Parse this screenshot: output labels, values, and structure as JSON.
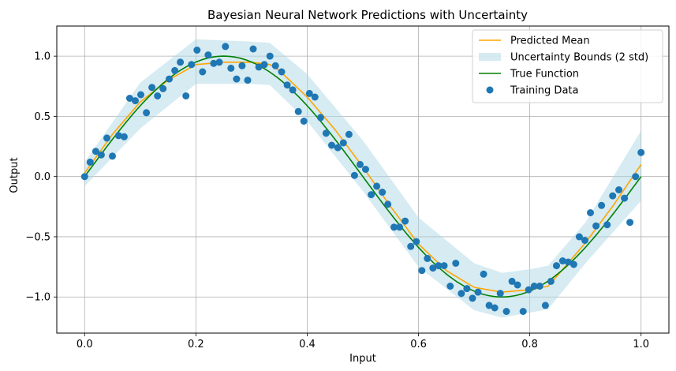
{
  "chart_data": {
    "type": "line",
    "title": "Bayesian Neural Network Predictions with Uncertainty",
    "xlabel": "Input",
    "ylabel": "Output",
    "xlim": [
      -0.05,
      1.05
    ],
    "ylim": [
      -1.3,
      1.25
    ],
    "xticks": [
      "0.0",
      "0.2",
      "0.4",
      "0.6",
      "0.8",
      "1.0"
    ],
    "yticks": [
      "-1.0",
      "-0.5",
      "0.0",
      "0.5",
      "1.0"
    ],
    "grid": true,
    "legend_position": "top-right",
    "colors": {
      "mean": "#ffa500",
      "band": "#add8e6",
      "true": "#008000",
      "points": "#1f77b4"
    },
    "legend": [
      {
        "label": "Predicted Mean",
        "kind": "line",
        "color": "#ffa500"
      },
      {
        "label": "Uncertainty Bounds (2 std)",
        "kind": "patch",
        "color": "#add8e6"
      },
      {
        "label": "True Function",
        "kind": "line",
        "color": "#008000"
      },
      {
        "label": "Training Data",
        "kind": "marker",
        "color": "#1f77b4"
      }
    ],
    "predicted_mean": {
      "x": [
        0.0,
        0.05,
        0.1,
        0.15,
        0.2,
        0.25,
        0.3,
        0.333,
        0.35,
        0.4,
        0.45,
        0.5,
        0.55,
        0.6,
        0.65,
        0.7,
        0.75,
        0.8,
        0.833,
        0.85,
        0.9,
        0.95,
        1.0
      ],
      "y": [
        0.03,
        0.35,
        0.62,
        0.8,
        0.93,
        0.95,
        0.95,
        0.93,
        0.88,
        0.66,
        0.39,
        0.08,
        -0.25,
        -0.56,
        -0.78,
        -0.92,
        -0.96,
        -0.94,
        -0.91,
        -0.82,
        -0.55,
        -0.24,
        0.1
      ]
    },
    "uncertainty_upper": {
      "x": [
        0.0,
        0.1,
        0.2,
        0.3,
        0.333,
        0.4,
        0.5,
        0.6,
        0.7,
        0.75,
        0.8,
        0.833,
        0.9,
        1.0
      ],
      "y": [
        0.12,
        0.78,
        1.14,
        1.12,
        1.11,
        0.85,
        0.3,
        -0.34,
        -0.72,
        -0.8,
        -0.77,
        -0.74,
        -0.38,
        0.38
      ]
    },
    "uncertainty_lower": {
      "x": [
        0.0,
        0.1,
        0.2,
        0.3,
        0.333,
        0.4,
        0.5,
        0.6,
        0.7,
        0.75,
        0.8,
        0.833,
        0.9,
        1.0
      ],
      "y": [
        -0.08,
        0.4,
        0.77,
        0.77,
        0.76,
        0.46,
        -0.12,
        -0.75,
        -1.11,
        -1.17,
        -1.13,
        -1.1,
        -0.72,
        -0.2
      ]
    },
    "training_data": {
      "x": [
        0.0,
        0.01,
        0.02,
        0.03,
        0.04,
        0.05,
        0.061,
        0.071,
        0.081,
        0.091,
        0.101,
        0.111,
        0.121,
        0.131,
        0.141,
        0.152,
        0.162,
        0.172,
        0.182,
        0.192,
        0.202,
        0.212,
        0.222,
        0.232,
        0.242,
        0.253,
        0.263,
        0.273,
        0.283,
        0.293,
        0.303,
        0.313,
        0.323,
        0.333,
        0.343,
        0.354,
        0.364,
        0.374,
        0.384,
        0.394,
        0.404,
        0.414,
        0.424,
        0.434,
        0.444,
        0.455,
        0.465,
        0.475,
        0.485,
        0.495,
        0.505,
        0.515,
        0.525,
        0.535,
        0.545,
        0.556,
        0.566,
        0.576,
        0.586,
        0.596,
        0.606,
        0.616,
        0.626,
        0.636,
        0.646,
        0.657,
        0.667,
        0.677,
        0.687,
        0.697,
        0.707,
        0.717,
        0.727,
        0.737,
        0.747,
        0.758,
        0.768,
        0.778,
        0.788,
        0.798,
        0.808,
        0.818,
        0.828,
        0.838,
        0.848,
        0.859,
        0.869,
        0.879,
        0.889,
        0.899,
        0.909,
        0.919,
        0.929,
        0.939,
        0.949,
        0.96,
        0.97,
        0.98,
        0.99,
        1.0
      ],
      "y": [
        0.0,
        0.12,
        0.21,
        0.18,
        0.32,
        0.17,
        0.34,
        0.33,
        0.65,
        0.63,
        0.68,
        0.53,
        0.74,
        0.67,
        0.73,
        0.81,
        0.88,
        0.95,
        0.67,
        0.93,
        1.05,
        0.87,
        1.01,
        0.94,
        0.95,
        1.08,
        0.9,
        0.81,
        0.92,
        0.8,
        1.06,
        0.91,
        0.93,
        1.0,
        0.92,
        0.87,
        0.76,
        0.72,
        0.54,
        0.46,
        0.69,
        0.66,
        0.49,
        0.36,
        0.26,
        0.24,
        0.28,
        0.35,
        0.01,
        0.1,
        0.06,
        -0.15,
        -0.08,
        -0.13,
        -0.23,
        -0.42,
        -0.42,
        -0.37,
        -0.58,
        -0.54,
        -0.78,
        -0.68,
        -0.76,
        -0.74,
        -0.74,
        -0.91,
        -0.72,
        -0.97,
        -0.93,
        -1.01,
        -0.96,
        -0.81,
        -1.07,
        -1.09,
        -0.97,
        -1.12,
        -0.87,
        -0.9,
        -1.12,
        -0.94,
        -0.91,
        -0.91,
        -1.07,
        -0.87,
        -0.74,
        -0.7,
        -0.71,
        -0.73,
        -0.5,
        -0.53,
        -0.3,
        -0.41,
        -0.24,
        -0.4,
        -0.16,
        -0.11,
        -0.18,
        -0.38,
        0.0,
        0.2
      ]
    }
  }
}
